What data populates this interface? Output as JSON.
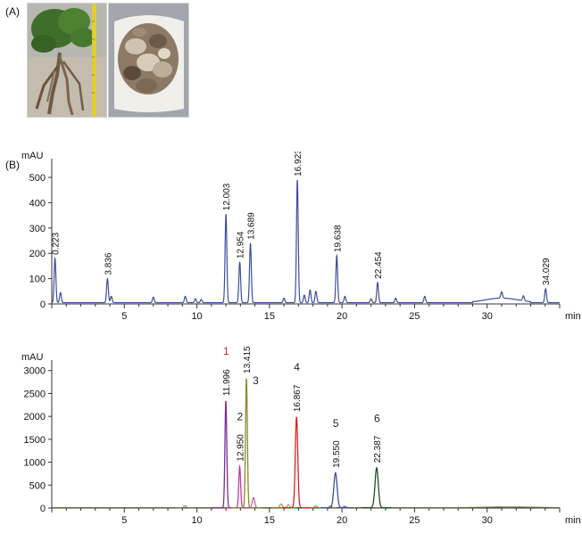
{
  "panel_labels": {
    "a": "(A)",
    "b": "(B)"
  },
  "photos": [
    {
      "name": "plant-photo",
      "depicts": "whole plant with green leaves and roots, next to a yellow ruler"
    },
    {
      "name": "dried-root-slices-photo",
      "depicts": "dried root slices in a white dish"
    }
  ],
  "chart_data": [
    {
      "type": "line",
      "yunit": "mAU",
      "xunit": "min",
      "xlim": [
        0,
        35
      ],
      "ylim": [
        0,
        560
      ],
      "yticks": [
        0,
        100,
        200,
        300,
        400,
        500
      ],
      "xticks": [
        5,
        10,
        15,
        20,
        25,
        30
      ],
      "grid": false,
      "color": "#3b4f9a",
      "peaks": [
        {
          "t": 0.223,
          "h": 175,
          "label": "0.223"
        },
        {
          "t": 0.6,
          "h": 40,
          "label": ""
        },
        {
          "t": 3.836,
          "h": 95,
          "label": "3.836"
        },
        {
          "t": 4.1,
          "h": 25,
          "label": ""
        },
        {
          "t": 7.0,
          "h": 22,
          "label": ""
        },
        {
          "t": 9.2,
          "h": 25,
          "label": ""
        },
        {
          "t": 9.9,
          "h": 15,
          "label": ""
        },
        {
          "t": 10.3,
          "h": 12,
          "label": ""
        },
        {
          "t": 12.003,
          "h": 350,
          "label": "12.003"
        },
        {
          "t": 12.954,
          "h": 160,
          "label": "12.954"
        },
        {
          "t": 13.689,
          "h": 235,
          "label": "13.689"
        },
        {
          "t": 16.0,
          "h": 18,
          "label": ""
        },
        {
          "t": 16.923,
          "h": 485,
          "label": "16.923"
        },
        {
          "t": 17.4,
          "h": 30,
          "label": ""
        },
        {
          "t": 17.8,
          "h": 50,
          "label": ""
        },
        {
          "t": 18.2,
          "h": 45,
          "label": ""
        },
        {
          "t": 19.638,
          "h": 185,
          "label": "19.638"
        },
        {
          "t": 20.2,
          "h": 25,
          "label": ""
        },
        {
          "t": 22.0,
          "h": 15,
          "label": ""
        },
        {
          "t": 22.454,
          "h": 80,
          "label": "22.454"
        },
        {
          "t": 23.7,
          "h": 18,
          "label": ""
        },
        {
          "t": 25.7,
          "h": 25,
          "label": ""
        },
        {
          "t": 31.0,
          "h": 25,
          "label": ""
        },
        {
          "t": 32.5,
          "h": 20,
          "label": ""
        },
        {
          "t": 34.029,
          "h": 55,
          "label": "34.029"
        }
      ]
    },
    {
      "type": "line",
      "yunit": "mAU",
      "xunit": "min",
      "xlim": [
        0,
        35
      ],
      "ylim": [
        0,
        3150
      ],
      "yticks": [
        0,
        500,
        1000,
        1500,
        2000,
        2500,
        3000
      ],
      "xticks": [
        5,
        10,
        15,
        20,
        25,
        30
      ],
      "grid": false,
      "series": [
        {
          "number": "1",
          "number_color": "#d22020",
          "color": "#7a2f8e",
          "t": 11.996,
          "h": 2330,
          "label": "11.996"
        },
        {
          "number": "2",
          "number_color": "#222222",
          "color": "#c23b9f",
          "t": 12.95,
          "h": 900,
          "label": "12.950"
        },
        {
          "number": "3",
          "number_color": "#222222",
          "color": "#8a8a2a",
          "t": 13.415,
          "h": 2820,
          "label": "13.415"
        },
        {
          "number": "4",
          "number_color": "#222222",
          "color": "#e02020",
          "t": 16.867,
          "h": 1980,
          "label": "16.867"
        },
        {
          "number": "5",
          "number_color": "#222222",
          "color": "#3b4f9a",
          "t": 19.55,
          "h": 760,
          "label": "19.550"
        },
        {
          "number": "6",
          "number_color": "#222222",
          "color": "#1f4d2a",
          "t": 22.387,
          "h": 870,
          "label": "22.387"
        }
      ],
      "minor_peaks": [
        {
          "t": 9.2,
          "h": 40,
          "color": "#7a7a7a"
        },
        {
          "t": 13.9,
          "h": 220,
          "color": "#c23b9f"
        },
        {
          "t": 15.8,
          "h": 80,
          "color": "#8a8a2a"
        },
        {
          "t": 16.3,
          "h": 60,
          "color": "#8a8a2a"
        },
        {
          "t": 18.2,
          "h": 40,
          "color": "#8a8a2a"
        },
        {
          "t": 19.2,
          "h": 40,
          "color": "#8a8a2a"
        },
        {
          "t": 20.2,
          "h": 30,
          "color": "#3b4f9a"
        }
      ]
    }
  ]
}
